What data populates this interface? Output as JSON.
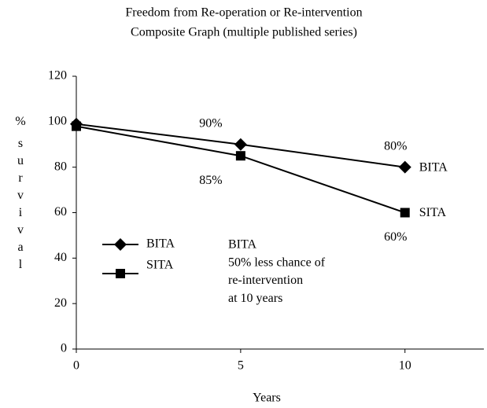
{
  "chart_data": {
    "type": "line",
    "title": [
      "Freedom from Re-operation or Re-intervention",
      "Composite Graph (multiple published series)"
    ],
    "x_label": "Years",
    "y_label": "% survival",
    "x": [
      0,
      5,
      10
    ],
    "series": [
      {
        "name": "BITA",
        "color": "#000000",
        "marker": "diamond",
        "values": [
          99,
          90,
          80
        ],
        "value_labels": [
          null,
          "90%",
          "80%"
        ]
      },
      {
        "name": "SITA",
        "color": "#000000",
        "marker": "square",
        "values": [
          98,
          85,
          60
        ],
        "value_labels": [
          null,
          "85%",
          "60%"
        ]
      }
    ],
    "xlim": [
      0,
      12.4
    ],
    "xticks": [
      0,
      5,
      10
    ],
    "ylim": [
      0,
      120
    ],
    "yticks": [
      0,
      20,
      40,
      60,
      80,
      100,
      120
    ],
    "annotation": [
      "BITA",
      "50% less chance of",
      "re-intervention",
      "at 10 years"
    ],
    "legend": "left"
  }
}
